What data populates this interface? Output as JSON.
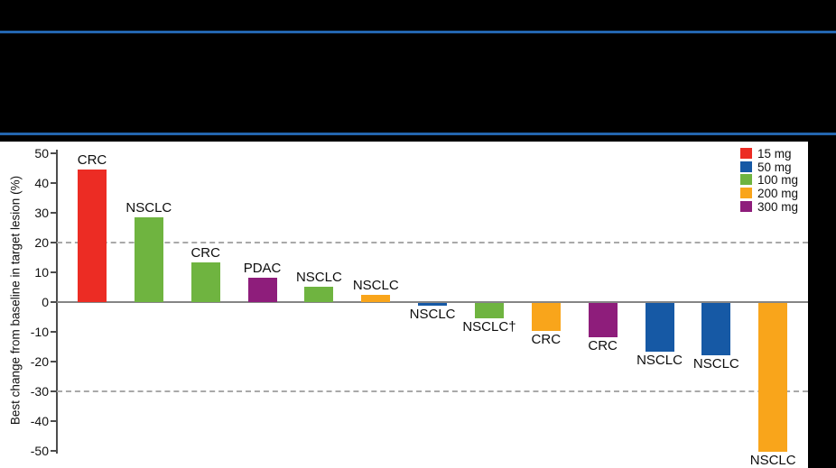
{
  "slide": {
    "background_color": "#000000",
    "rule_color": "#2365AF"
  },
  "chart_data": {
    "type": "bar",
    "title": "",
    "ylabel": "Best change from baseline in target lesion (%)",
    "xlabel": "",
    "ylim": [
      -50,
      50
    ],
    "yticks": [
      50,
      40,
      30,
      20,
      10,
      0,
      -10,
      -20,
      -30,
      -40,
      -50
    ],
    "reference_lines_dashed": [
      20,
      -30
    ],
    "baseline": 0,
    "grid": "off",
    "legend_position": "top-right",
    "bars": [
      {
        "label": "CRC",
        "dose": "15 mg",
        "value": 44.5
      },
      {
        "label": "NSCLC",
        "dose": "100 mg",
        "value": 28.5
      },
      {
        "label": "CRC",
        "dose": "100 mg",
        "value": 13.3
      },
      {
        "label": "PDAC",
        "dose": "300 mg",
        "value": 8.2
      },
      {
        "label": "NSCLC",
        "dose": "100 mg",
        "value": 5.2
      },
      {
        "label": "NSCLC",
        "dose": "200 mg",
        "value": 2.4
      },
      {
        "label": "NSCLC",
        "dose": "50 mg",
        "value": -1.0
      },
      {
        "label": "NSCLC†",
        "dose": "100 mg",
        "value": -5.2
      },
      {
        "label": "CRC",
        "dose": "200 mg",
        "value": -9.5
      },
      {
        "label": "CRC",
        "dose": "300 mg",
        "value": -11.5
      },
      {
        "label": "NSCLC",
        "dose": "50 mg",
        "value": -16.5
      },
      {
        "label": "NSCLC",
        "dose": "50 mg",
        "value": -17.5
      },
      {
        "label": "NSCLC",
        "dose": "200 mg",
        "value": -50.0
      }
    ],
    "legend": [
      {
        "label": "15 mg",
        "color": "#EC2C24"
      },
      {
        "label": "50 mg",
        "color": "#1659A5"
      },
      {
        "label": "100 mg",
        "color": "#6FB440"
      },
      {
        "label": "200 mg",
        "color": "#F9A51B"
      },
      {
        "label": "300 mg",
        "color": "#8E1D7B"
      }
    ],
    "dose_colors": {
      "15 mg": "#EC2C24",
      "50 mg": "#1659A5",
      "100 mg": "#6FB440",
      "200 mg": "#F9A51B",
      "300 mg": "#8E1D7B"
    }
  }
}
